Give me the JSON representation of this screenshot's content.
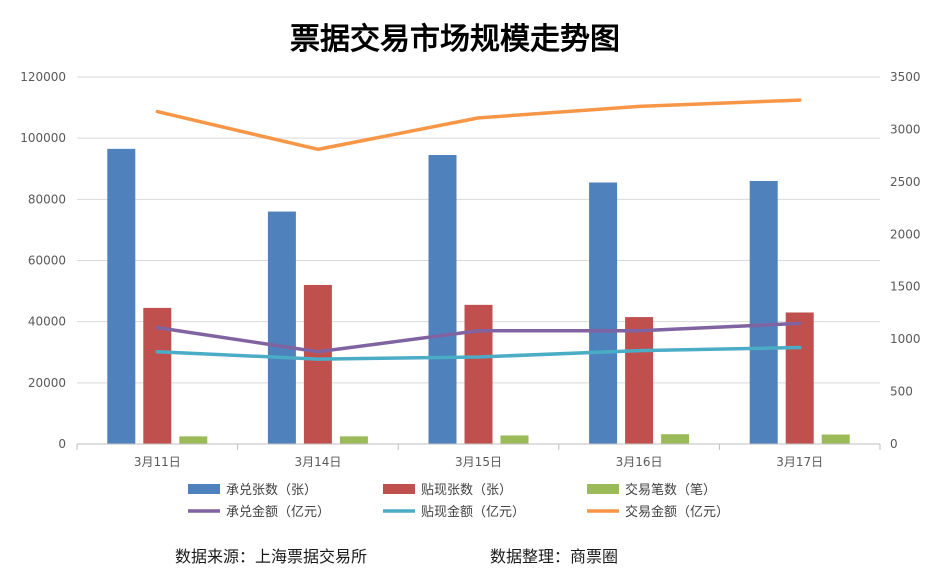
{
  "chart_data": {
    "type": "bar",
    "title": "票据交易市场规模走势图",
    "categories": [
      "3月11日",
      "3月14日",
      "3月15日",
      "3月16日",
      "3月17日"
    ],
    "y_left": {
      "min": 0,
      "max": 120000,
      "ticks": [
        "0",
        "20000",
        "40000",
        "60000",
        "80000",
        "100000",
        "120000"
      ]
    },
    "y_right": {
      "min": 0,
      "max": 3500,
      "ticks": [
        "0",
        "500",
        "1000",
        "1500",
        "2000",
        "2500",
        "3000",
        "3500"
      ]
    },
    "series": [
      {
        "name": "承兑张数（张）",
        "type": "bar",
        "axis": "left",
        "color": "#4f81bd",
        "values": [
          96500,
          76000,
          94500,
          85500,
          86000
        ]
      },
      {
        "name": "贴现张数（张）",
        "type": "bar",
        "axis": "left",
        "color": "#c0504d",
        "values": [
          44500,
          52000,
          45500,
          41500,
          43000
        ]
      },
      {
        "name": "交易笔数（笔）",
        "type": "bar",
        "axis": "left",
        "color": "#9bbb59",
        "values": [
          2500,
          2500,
          2800,
          3200,
          3100
        ]
      },
      {
        "name": "承兑金额（亿元）",
        "type": "line",
        "axis": "right",
        "color": "#8064a2",
        "values": [
          1110,
          880,
          1080,
          1080,
          1150
        ]
      },
      {
        "name": "贴现金额（亿元）",
        "type": "line",
        "axis": "right",
        "color": "#4bacc6",
        "values": [
          880,
          810,
          830,
          890,
          920
        ]
      },
      {
        "name": "交易金额（亿元）",
        "type": "line",
        "axis": "right",
        "color": "#f79646",
        "values": [
          3170,
          2810,
          3110,
          3220,
          3280
        ]
      }
    ],
    "grid": true,
    "legend_position": "bottom"
  },
  "footer": {
    "source": "数据来源：上海票据交易所",
    "compiler": "数据整理：商票圈"
  }
}
